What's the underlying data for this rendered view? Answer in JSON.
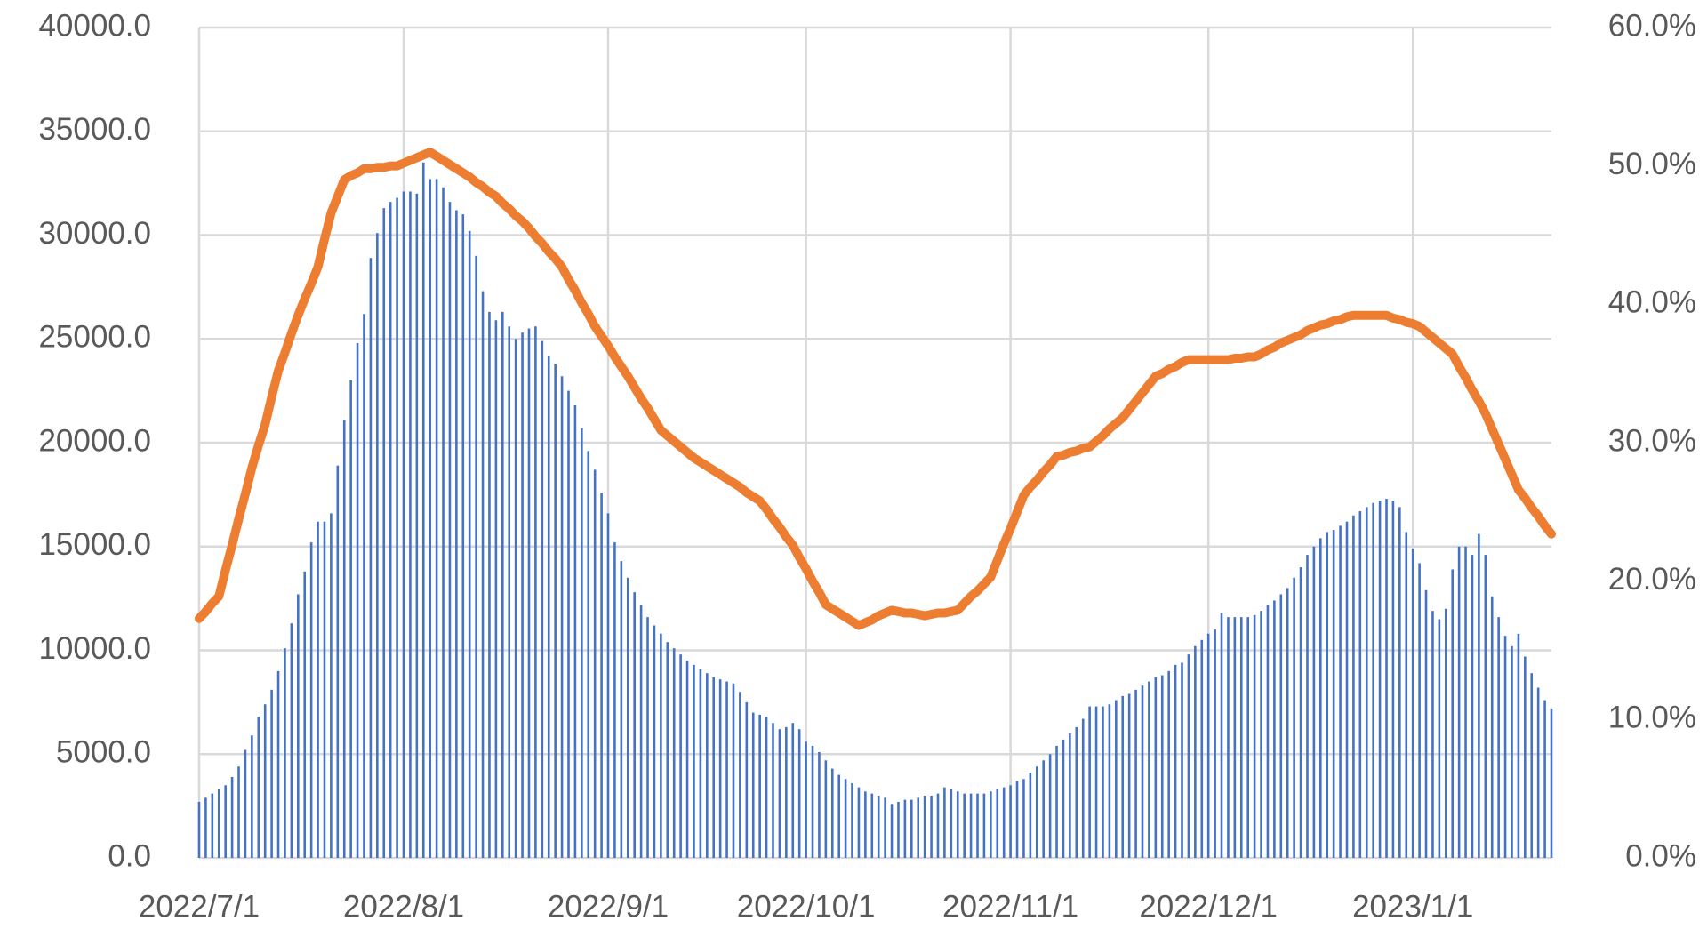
{
  "chart_data": {
    "type": "bar-line",
    "x": [
      "2022/7/1",
      "2022/7/2",
      "2022/7/3",
      "2022/7/4",
      "2022/7/5",
      "2022/7/6",
      "2022/7/7",
      "2022/7/8",
      "2022/7/9",
      "2022/7/10",
      "2022/7/11",
      "2022/7/12",
      "2022/7/13",
      "2022/7/14",
      "2022/7/15",
      "2022/7/16",
      "2022/7/17",
      "2022/7/18",
      "2022/7/19",
      "2022/7/20",
      "2022/7/21",
      "2022/7/22",
      "2022/7/23",
      "2022/7/24",
      "2022/7/25",
      "2022/7/26",
      "2022/7/27",
      "2022/7/28",
      "2022/7/29",
      "2022/7/30",
      "2022/7/31",
      "2022/8/1",
      "2022/8/2",
      "2022/8/3",
      "2022/8/4",
      "2022/8/5",
      "2022/8/6",
      "2022/8/7",
      "2022/8/8",
      "2022/8/9",
      "2022/8/10",
      "2022/8/11",
      "2022/8/12",
      "2022/8/13",
      "2022/8/14",
      "2022/8/15",
      "2022/8/16",
      "2022/8/17",
      "2022/8/18",
      "2022/8/19",
      "2022/8/20",
      "2022/8/21",
      "2022/8/22",
      "2022/8/23",
      "2022/8/24",
      "2022/8/25",
      "2022/8/26",
      "2022/8/27",
      "2022/8/28",
      "2022/8/29",
      "2022/8/30",
      "2022/8/31",
      "2022/9/1",
      "2022/9/2",
      "2022/9/3",
      "2022/9/4",
      "2022/9/5",
      "2022/9/6",
      "2022/9/7",
      "2022/9/8",
      "2022/9/9",
      "2022/9/10",
      "2022/9/11",
      "2022/9/12",
      "2022/9/13",
      "2022/9/14",
      "2022/9/15",
      "2022/9/16",
      "2022/9/17",
      "2022/9/18",
      "2022/9/19",
      "2022/9/20",
      "2022/9/21",
      "2022/9/22",
      "2022/9/23",
      "2022/9/24",
      "2022/9/25",
      "2022/9/26",
      "2022/9/27",
      "2022/9/28",
      "2022/9/29",
      "2022/9/30",
      "2022/10/1",
      "2022/10/2",
      "2022/10/3",
      "2022/10/4",
      "2022/10/5",
      "2022/10/6",
      "2022/10/7",
      "2022/10/8",
      "2022/10/9",
      "2022/10/10",
      "2022/10/11",
      "2022/10/12",
      "2022/10/13",
      "2022/10/14",
      "2022/10/15",
      "2022/10/16",
      "2022/10/17",
      "2022/10/18",
      "2022/10/19",
      "2022/10/20",
      "2022/10/21",
      "2022/10/22",
      "2022/10/23",
      "2022/10/24",
      "2022/10/25",
      "2022/10/26",
      "2022/10/27",
      "2022/10/28",
      "2022/10/29",
      "2022/10/30",
      "2022/10/31",
      "2022/11/1",
      "2022/11/2",
      "2022/11/3",
      "2022/11/4",
      "2022/11/5",
      "2022/11/6",
      "2022/11/7",
      "2022/11/8",
      "2022/11/9",
      "2022/11/10",
      "2022/11/11",
      "2022/11/12",
      "2022/11/13",
      "2022/11/14",
      "2022/11/15",
      "2022/11/16",
      "2022/11/17",
      "2022/11/18",
      "2022/11/19",
      "2022/11/20",
      "2022/11/21",
      "2022/11/22",
      "2022/11/23",
      "2022/11/24",
      "2022/11/25",
      "2022/11/26",
      "2022/11/27",
      "2022/11/28",
      "2022/11/29",
      "2022/11/30",
      "2022/12/1",
      "2022/12/2",
      "2022/12/3",
      "2022/12/4",
      "2022/12/5",
      "2022/12/6",
      "2022/12/7",
      "2022/12/8",
      "2022/12/9",
      "2022/12/10",
      "2022/12/11",
      "2022/12/12",
      "2022/12/13",
      "2022/12/14",
      "2022/12/15",
      "2022/12/16",
      "2022/12/17",
      "2022/12/18",
      "2022/12/19",
      "2022/12/20",
      "2022/12/21",
      "2022/12/22",
      "2022/12/23",
      "2022/12/24",
      "2022/12/25",
      "2022/12/26",
      "2022/12/27",
      "2022/12/28",
      "2022/12/29",
      "2022/12/30",
      "2022/12/31",
      "2023/1/1",
      "2023/1/2",
      "2023/1/3",
      "2023/1/4",
      "2023/1/5",
      "2023/1/6",
      "2023/1/7",
      "2023/1/8",
      "2023/1/9",
      "2023/1/10",
      "2023/1/11",
      "2023/1/12",
      "2023/1/13",
      "2023/1/14",
      "2023/1/15",
      "2023/1/16",
      "2023/1/17",
      "2023/1/18",
      "2023/1/19",
      "2023/1/20",
      "2023/1/21",
      "2023/1/22"
    ],
    "series": [
      {
        "type": "bar",
        "color": "#4472c4",
        "values": [
          2700,
          2900,
          3100,
          3300,
          3500,
          3900,
          4400,
          5200,
          5900,
          6800,
          7400,
          8100,
          9000,
          10100,
          11300,
          12700,
          13800,
          15200,
          16200,
          16200,
          16600,
          18900,
          21100,
          23000,
          24800,
          26200,
          28900,
          30100,
          31300,
          31600,
          31800,
          32100,
          32100,
          32000,
          33500,
          32700,
          32700,
          32300,
          31600,
          31200,
          31000,
          30200,
          29000,
          27300,
          26300,
          25900,
          26300,
          25600,
          25000,
          25300,
          25500,
          25600,
          24900,
          24200,
          23800,
          23200,
          22500,
          21800,
          20700,
          19600,
          18700,
          17600,
          16600,
          15200,
          14300,
          13500,
          12800,
          12200,
          11600,
          11200,
          10800,
          10400,
          10100,
          9800,
          9500,
          9300,
          9100,
          8900,
          8700,
          8600,
          8500,
          8400,
          8000,
          7500,
          7000,
          6900,
          6800,
          6500,
          6200,
          6300,
          6500,
          6200,
          5600,
          5400,
          5100,
          4700,
          4300,
          4000,
          3800,
          3600,
          3400,
          3200,
          3100,
          3000,
          2900,
          2600,
          2700,
          2800,
          2800,
          2900,
          3000,
          3000,
          3100,
          3400,
          3300,
          3200,
          3100,
          3100,
          3100,
          3100,
          3200,
          3300,
          3400,
          3500,
          3700,
          3800,
          4100,
          4400,
          4700,
          5000,
          5400,
          5700,
          6000,
          6300,
          6700,
          7300,
          7300,
          7300,
          7400,
          7600,
          7800,
          7900,
          8100,
          8300,
          8500,
          8700,
          8800,
          9000,
          9300,
          9400,
          9800,
          10200,
          10500,
          10800,
          11000,
          11800,
          11600,
          11600,
          11600,
          11600,
          11700,
          11900,
          12200,
          12400,
          12700,
          13000,
          13500,
          14000,
          14600,
          15000,
          15400,
          15700,
          15800,
          16000,
          16200,
          16500,
          16700,
          16900,
          17100,
          17200,
          17300,
          17200,
          16900,
          15700,
          14900,
          14200,
          12900,
          11900,
          11500,
          12000,
          13900,
          15000,
          15000,
          14600,
          15600,
          14600,
          12600,
          11600,
          10700,
          10200,
          10800,
          9700,
          8900,
          8200,
          7600,
          7200
        ]
      },
      {
        "type": "line",
        "axis": "y2",
        "color": "#ed7d31",
        "values": [
          17.3,
          17.8,
          18.4,
          18.9,
          20.8,
          22.6,
          24.5,
          26.3,
          28.2,
          29.8,
          31.3,
          33.3,
          35.2,
          36.5,
          37.9,
          39.2,
          40.4,
          41.5,
          42.7,
          44.7,
          46.6,
          47.8,
          49.0,
          49.3,
          49.5,
          49.8,
          49.8,
          49.9,
          49.9,
          50.0,
          50.0,
          50.2,
          50.4,
          50.6,
          50.8,
          51.0,
          50.7,
          50.4,
          50.1,
          49.8,
          49.5,
          49.2,
          48.8,
          48.5,
          48.1,
          47.8,
          47.3,
          46.9,
          46.4,
          46.0,
          45.5,
          44.9,
          44.4,
          43.8,
          43.3,
          42.7,
          41.8,
          41.0,
          40.1,
          39.3,
          38.4,
          37.7,
          37.0,
          36.2,
          35.5,
          34.8,
          34.0,
          33.2,
          32.5,
          31.7,
          30.9,
          30.5,
          30.1,
          29.7,
          29.3,
          28.9,
          28.6,
          28.3,
          28.0,
          27.7,
          27.4,
          27.1,
          26.8,
          26.4,
          26.1,
          25.8,
          25.2,
          24.5,
          23.9,
          23.2,
          22.6,
          21.7,
          20.9,
          20.0,
          19.2,
          18.3,
          18.0,
          17.7,
          17.4,
          17.1,
          16.8,
          17.0,
          17.2,
          17.5,
          17.7,
          17.9,
          17.8,
          17.7,
          17.7,
          17.6,
          17.5,
          17.6,
          17.7,
          17.7,
          17.8,
          17.9,
          18.4,
          18.9,
          19.3,
          19.8,
          20.3,
          21.5,
          22.7,
          23.8,
          25.0,
          26.2,
          26.8,
          27.3,
          27.9,
          28.4,
          29.0,
          29.1,
          29.3,
          29.4,
          29.6,
          29.7,
          30.1,
          30.5,
          31.0,
          31.4,
          31.8,
          32.4,
          33.0,
          33.6,
          34.2,
          34.8,
          35.0,
          35.3,
          35.5,
          35.8,
          36.0,
          36.0,
          36.0,
          36.0,
          36.0,
          36.0,
          36.0,
          36.1,
          36.1,
          36.2,
          36.2,
          36.4,
          36.7,
          36.9,
          37.2,
          37.4,
          37.6,
          37.8,
          38.1,
          38.3,
          38.5,
          38.6,
          38.8,
          38.9,
          39.1,
          39.2,
          39.2,
          39.2,
          39.2,
          39.2,
          39.2,
          39.0,
          38.9,
          38.7,
          38.6,
          38.4,
          38.0,
          37.6,
          37.2,
          36.8,
          36.4,
          35.5,
          34.7,
          33.8,
          33.0,
          32.1,
          31.0,
          29.9,
          28.8,
          27.7,
          26.6,
          26.0,
          25.3,
          24.7,
          24.0,
          23.4
        ]
      }
    ],
    "xticks": [
      "2022/7/1",
      "2022/8/1",
      "2022/9/1",
      "2022/10/1",
      "2022/11/1",
      "2022/12/1",
      "2023/1/1"
    ],
    "ylim": [
      0,
      40000
    ],
    "yticks": [
      {
        "value": 0,
        "label": "0.0"
      },
      {
        "value": 5000,
        "label": "5000.0"
      },
      {
        "value": 10000,
        "label": "10000.0"
      },
      {
        "value": 15000,
        "label": "15000.0"
      },
      {
        "value": 20000,
        "label": "20000.0"
      },
      {
        "value": 25000,
        "label": "25000.0"
      },
      {
        "value": 30000,
        "label": "30000.0"
      },
      {
        "value": 35000,
        "label": "35000.0"
      },
      {
        "value": 40000,
        "label": "40000.0"
      }
    ],
    "y2lim": [
      0,
      60
    ],
    "y2ticks": [
      {
        "value": 0,
        "label": "0.0%"
      },
      {
        "value": 10,
        "label": "10.0%"
      },
      {
        "value": 20,
        "label": "20.0%"
      },
      {
        "value": 30,
        "label": "30.0%"
      },
      {
        "value": 40,
        "label": "40.0%"
      },
      {
        "value": 50,
        "label": "50.0%"
      },
      {
        "value": 60,
        "label": "60.0%"
      }
    ],
    "grid": true
  }
}
